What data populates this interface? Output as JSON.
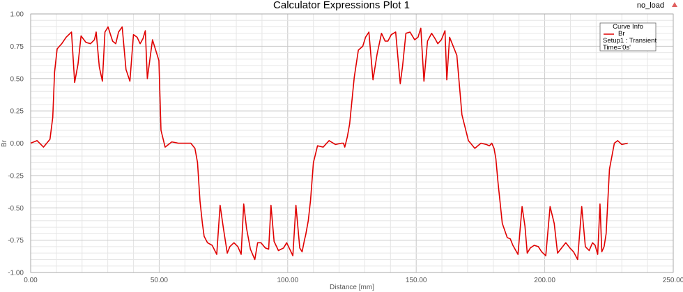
{
  "chart_data": {
    "type": "line",
    "title": "Calculator Expressions Plot 1",
    "corner_label": "no_load",
    "xlabel": "Distance [mm]",
    "ylabel": "Br",
    "xlim": [
      0,
      250
    ],
    "ylim": [
      -1.0,
      1.0
    ],
    "x_ticks": [
      "0.00",
      "50.00",
      "100.00",
      "150.00",
      "200.00",
      "250.00"
    ],
    "y_ticks": [
      "1.00",
      "0.75",
      "0.50",
      "0.25",
      "0.00",
      "-0.25",
      "-0.50",
      "-0.75",
      "-1.00"
    ],
    "grid": true,
    "legend": {
      "placement": "top-right",
      "title": "Curve Info",
      "lines": [
        "Setup1 : Transient",
        "Time='0s'"
      ]
    },
    "series": [
      {
        "name": "Br",
        "color": "#e00000",
        "x": [
          0.0,
          2.5,
          5.0,
          7.5,
          8.6,
          9.3,
          10.3,
          12.1,
          13.8,
          15.9,
          17.1,
          18.4,
          19.6,
          21.5,
          23.3,
          24.8,
          25.5,
          26.7,
          27.9,
          28.9,
          30.1,
          31.9,
          33.1,
          34.2,
          35.6,
          37.1,
          38.6,
          40.0,
          41.4,
          42.6,
          43.7,
          44.6,
          45.4,
          47.4,
          49.9,
          50.7,
          52.3,
          54.9,
          57.4,
          60.0,
          62.3,
          63.9,
          64.9,
          65.9,
          66.8,
          67.5,
          68.8,
          70.6,
          72.4,
          73.7,
          75.0,
          76.5,
          77.5,
          79.1,
          80.6,
          81.9,
          82.9,
          84.0,
          85.5,
          87.2,
          88.3,
          89.6,
          91.3,
          92.6,
          93.5,
          94.7,
          96.4,
          98.4,
          99.6,
          100.8,
          102.0,
          103.2,
          104.7,
          105.6,
          106.5,
          107.0,
          108.0,
          108.9,
          110.0,
          111.6,
          113.8,
          116.1,
          118.6,
          120.9,
          121.7,
          122.2,
          123.2,
          124.1,
          125.9,
          127.5,
          129.2,
          130.3,
          131.6,
          133.2,
          134.8,
          136.5,
          137.9,
          139.0,
          140.3,
          142.0,
          143.8,
          144.7,
          146.0,
          147.6,
          149.4,
          150.7,
          151.8,
          153.0,
          154.4,
          156.0,
          157.3,
          158.4,
          159.8,
          161.2,
          161.9,
          163.0,
          165.8,
          167.8,
          170.3,
          172.8,
          175.2,
          177.3,
          178.5,
          179.4,
          180.3,
          181.0,
          181.8,
          183.5,
          185.4,
          186.6,
          187.6,
          189.6,
          191.2,
          192.3,
          193.2,
          194.4,
          195.9,
          197.5,
          198.8,
          200.4,
          202.1,
          203.7,
          205.0,
          206.6,
          208.2,
          209.8,
          211.2,
          212.8,
          214.4,
          215.8,
          217.3,
          218.6,
          219.6,
          220.6,
          221.5,
          222.2,
          223.1,
          223.9,
          225.2,
          227.1,
          228.4,
          230.0,
          232.3
        ],
        "y": [
          0.0,
          0.02,
          -0.03,
          0.03,
          0.2,
          0.55,
          0.73,
          0.77,
          0.82,
          0.86,
          0.47,
          0.61,
          0.83,
          0.78,
          0.77,
          0.8,
          0.86,
          0.59,
          0.48,
          0.86,
          0.9,
          0.79,
          0.77,
          0.86,
          0.9,
          0.57,
          0.48,
          0.84,
          0.82,
          0.77,
          0.81,
          0.87,
          0.5,
          0.8,
          0.64,
          0.1,
          -0.03,
          0.01,
          0.0,
          0.0,
          0.0,
          -0.04,
          -0.15,
          -0.45,
          -0.62,
          -0.72,
          -0.77,
          -0.79,
          -0.86,
          -0.48,
          -0.66,
          -0.85,
          -0.8,
          -0.77,
          -0.8,
          -0.86,
          -0.47,
          -0.66,
          -0.82,
          -0.9,
          -0.77,
          -0.77,
          -0.81,
          -0.82,
          -0.48,
          -0.76,
          -0.83,
          -0.81,
          -0.77,
          -0.82,
          -0.87,
          -0.48,
          -0.81,
          -0.84,
          -0.75,
          -0.71,
          -0.6,
          -0.44,
          -0.15,
          -0.02,
          -0.03,
          0.02,
          -0.01,
          0.0,
          0.0,
          -0.03,
          0.05,
          0.15,
          0.51,
          0.72,
          0.75,
          0.82,
          0.86,
          0.49,
          0.69,
          0.85,
          0.79,
          0.79,
          0.84,
          0.86,
          0.46,
          0.6,
          0.85,
          0.86,
          0.8,
          0.82,
          0.89,
          0.48,
          0.79,
          0.85,
          0.81,
          0.77,
          0.8,
          0.87,
          0.49,
          0.82,
          0.68,
          0.22,
          0.02,
          -0.04,
          0.0,
          -0.01,
          -0.02,
          0.0,
          -0.04,
          -0.12,
          -0.3,
          -0.62,
          -0.73,
          -0.74,
          -0.79,
          -0.86,
          -0.49,
          -0.64,
          -0.85,
          -0.81,
          -0.79,
          -0.8,
          -0.84,
          -0.87,
          -0.49,
          -0.62,
          -0.85,
          -0.81,
          -0.77,
          -0.81,
          -0.84,
          -0.9,
          -0.49,
          -0.8,
          -0.83,
          -0.77,
          -0.79,
          -0.86,
          -0.47,
          -0.84,
          -0.8,
          -0.7,
          -0.2,
          0.0,
          0.02,
          -0.01,
          0.0
        ]
      }
    ]
  }
}
